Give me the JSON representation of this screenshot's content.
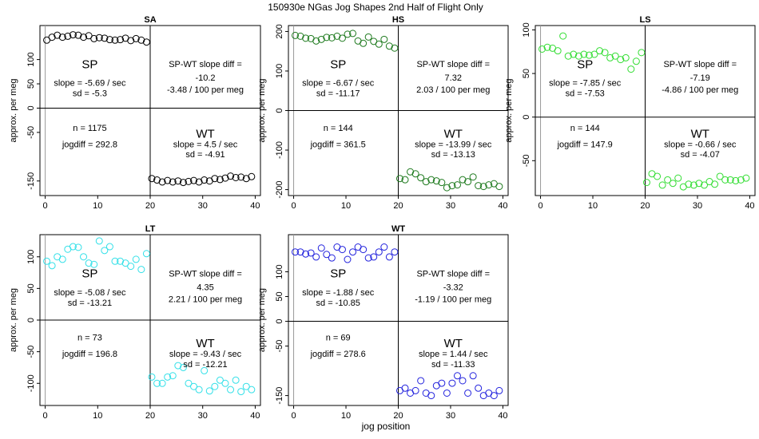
{
  "figure": {
    "title": "150930e    NGas Jog Shapes 2nd Half of Flight Only",
    "xlabel": "jog position"
  },
  "chart_data": [
    {
      "type": "scatter",
      "title": "SA",
      "ylabel": "approx. per meg",
      "color": "#000000",
      "xlim": [
        -1,
        41
      ],
      "ylim": [
        -180,
        170
      ],
      "xticks": [
        "0",
        "10",
        "20",
        "30",
        "40"
      ],
      "yticks": [
        "-150",
        "-50",
        "0",
        "50",
        "100"
      ],
      "yticks_values": [
        -150,
        -50,
        0,
        50,
        100
      ],
      "x": [
        0,
        1,
        2,
        3,
        4,
        5,
        6,
        7,
        8,
        9,
        10,
        11,
        12,
        13,
        14,
        15,
        16,
        17,
        18,
        19,
        20,
        21,
        22,
        23,
        24,
        25,
        26,
        27,
        28,
        29,
        30,
        31,
        32,
        33,
        34,
        35,
        36,
        37,
        38,
        39
      ],
      "y": [
        140,
        146,
        150,
        146,
        148,
        151,
        150,
        146,
        149,
        143,
        145,
        144,
        141,
        140,
        141,
        144,
        139,
        143,
        140,
        136,
        -145,
        -148,
        -152,
        -149,
        -152,
        -150,
        -153,
        -151,
        -149,
        -152,
        -148,
        -150,
        -145,
        -147,
        -144,
        -140,
        -143,
        -142,
        -145,
        -141
      ],
      "labels": {
        "sp": "SP",
        "wt": "WT",
        "sp_slope": "slope = -5.69 / sec",
        "sp_sd": "sd = -5.3",
        "diff_label": "SP-WT slope diff =",
        "diff_value": "-10.2",
        "diff_per_meg": "-3.48 / 100 per meg",
        "n": "n = 1175",
        "jogdiff": "jogdiff = 292.8",
        "wt_slope": "slope = 4.5 / sec",
        "wt_sd": "sd = -4.91"
      }
    },
    {
      "type": "scatter",
      "title": "HS",
      "ylabel": "approx. per meg",
      "color": "#1e7a1e",
      "xlim": [
        -1,
        41
      ],
      "ylim": [
        -215,
        215
      ],
      "xticks": [
        "0",
        "10",
        "20",
        "30",
        "40"
      ],
      "yticks": [
        "-200",
        "-100",
        "0",
        "100",
        "200"
      ],
      "yticks_values": [
        -200,
        -100,
        0,
        100,
        200
      ],
      "x": [
        0,
        1,
        2,
        3,
        4,
        5,
        6,
        7,
        8,
        9,
        10,
        11,
        12,
        13,
        14,
        15,
        16,
        17,
        18,
        19,
        20,
        21,
        22,
        23,
        24,
        25,
        26,
        27,
        28,
        29,
        30,
        31,
        32,
        33,
        34,
        35,
        36,
        37,
        38,
        39
      ],
      "y": [
        190,
        188,
        183,
        182,
        176,
        180,
        185,
        184,
        188,
        183,
        193,
        195,
        176,
        170,
        186,
        175,
        168,
        180,
        163,
        158,
        -172,
        -175,
        -155,
        -160,
        -170,
        -180,
        -175,
        -178,
        -182,
        -195,
        -190,
        -188,
        -175,
        -180,
        -168,
        -190,
        -192,
        -188,
        -185,
        -192
      ],
      "labels": {
        "sp": "SP",
        "wt": "WT",
        "sp_slope": "slope = -6.67 / sec",
        "sp_sd": "sd = -11.17",
        "diff_label": "SP-WT slope diff =",
        "diff_value": "7.32",
        "diff_per_meg": "2.03 / 100 per meg",
        "n": "n = 144",
        "jogdiff": "jogdiff = 361.5",
        "wt_slope": "slope = -13.99 / sec",
        "wt_sd": "sd = -13.13"
      }
    },
    {
      "type": "scatter",
      "title": "LS",
      "ylabel": "approx. per meg",
      "color": "#33dd33",
      "xlim": [
        -1,
        41
      ],
      "ylim": [
        -90,
        105
      ],
      "xticks": [
        "0",
        "10",
        "20",
        "30",
        "40"
      ],
      "yticks": [
        "-50",
        "0",
        "50",
        "100"
      ],
      "yticks_values": [
        -50,
        0,
        50,
        100
      ],
      "x": [
        0,
        1,
        2,
        3,
        4,
        5,
        6,
        7,
        8,
        9,
        10,
        11,
        12,
        13,
        14,
        15,
        16,
        17,
        18,
        19,
        20,
        21,
        22,
        23,
        24,
        25,
        26,
        27,
        28,
        29,
        30,
        31,
        32,
        33,
        34,
        35,
        36,
        37,
        38,
        39
      ],
      "y": [
        78,
        80,
        79,
        76,
        93,
        70,
        72,
        70,
        72,
        71,
        72,
        76,
        74,
        68,
        70,
        66,
        68,
        55,
        64,
        74,
        -75,
        -65,
        -68,
        -78,
        -72,
        -76,
        -70,
        -80,
        -77,
        -78,
        -76,
        -78,
        -74,
        -77,
        -68,
        -72,
        -72,
        -73,
        -72,
        -70
      ],
      "labels": {
        "sp": "SP",
        "wt": "WT",
        "sp_slope": "slope = -7.85 / sec",
        "sp_sd": "sd = -7.53",
        "diff_label": "SP-WT slope diff =",
        "diff_value": "-7.19",
        "diff_per_meg": "-4.86 / 100 per meg",
        "n": "n = 144",
        "jogdiff": "jogdiff = 147.9",
        "wt_slope": "slope = -0.66 / sec",
        "wt_sd": "sd = -4.07"
      }
    },
    {
      "type": "scatter",
      "title": "LT",
      "ylabel": "approx. per meg",
      "color": "#33e0e8",
      "xlim": [
        -1,
        41
      ],
      "ylim": [
        -135,
        135
      ],
      "xticks": [
        "0",
        "10",
        "20",
        "30",
        "40"
      ],
      "yticks": [
        "-100",
        "-50",
        "0",
        "50",
        "100"
      ],
      "yticks_values": [
        -100,
        -50,
        0,
        50,
        100
      ],
      "x": [
        0,
        1,
        2,
        3,
        4,
        5,
        6,
        7,
        8,
        9,
        10,
        11,
        12,
        13,
        14,
        15,
        16,
        17,
        18,
        19,
        20,
        21,
        22,
        23,
        24,
        25,
        26,
        27,
        28,
        29,
        30,
        31,
        32,
        33,
        34,
        35,
        36,
        37,
        38,
        39
      ],
      "y": [
        93,
        86,
        100,
        96,
        112,
        116,
        115,
        100,
        90,
        88,
        125,
        110,
        116,
        93,
        93,
        90,
        85,
        96,
        80,
        105,
        -90,
        -100,
        -100,
        -90,
        -88,
        -72,
        -75,
        -100,
        -105,
        -110,
        -80,
        -112,
        -105,
        -95,
        -100,
        -110,
        -95,
        -113,
        -105,
        -110
      ],
      "labels": {
        "sp": "SP",
        "wt": "WT",
        "sp_slope": "slope = -5.08 / sec",
        "sp_sd": "sd = -13.21",
        "diff_label": "SP-WT slope diff =",
        "diff_value": "4.35",
        "diff_per_meg": "2.21 / 100 per meg",
        "n": "n = 73",
        "jogdiff": "jogdiff = 196.8",
        "wt_slope": "slope = -9.43 / sec",
        "wt_sd": "sd = -12.21"
      }
    },
    {
      "type": "scatter",
      "title": "WT",
      "ylabel": "approx. per meg",
      "color": "#2222dd",
      "xlim": [
        -1,
        41
      ],
      "ylim": [
        -170,
        175
      ],
      "xticks": [
        "0",
        "10",
        "20",
        "30",
        "40"
      ],
      "yticks": [
        "-150",
        "-50",
        "0",
        "50",
        "100"
      ],
      "yticks_values": [
        -150,
        -50,
        0,
        50,
        100
      ],
      "x": [
        0,
        1,
        2,
        3,
        4,
        5,
        6,
        7,
        8,
        9,
        10,
        11,
        12,
        13,
        14,
        15,
        16,
        17,
        18,
        19,
        20,
        21,
        22,
        23,
        24,
        25,
        26,
        27,
        28,
        29,
        30,
        31,
        32,
        33,
        34,
        35,
        36,
        37,
        38,
        39
      ],
      "y": [
        140,
        140,
        136,
        138,
        130,
        148,
        135,
        128,
        150,
        145,
        125,
        140,
        150,
        145,
        128,
        130,
        140,
        150,
        130,
        140,
        -140,
        -135,
        -145,
        -140,
        -120,
        -145,
        -150,
        -130,
        -125,
        -145,
        -125,
        -110,
        -120,
        -145,
        -110,
        -135,
        -150,
        -145,
        -150,
        -140
      ],
      "labels": {
        "sp": "SP",
        "wt": "WT",
        "sp_slope": "slope = -1.88 / sec",
        "sp_sd": "sd = -10.85",
        "diff_label": "SP-WT slope diff =",
        "diff_value": "-3.32",
        "diff_per_meg": "-1.19 / 100 per meg",
        "n": "n = 69",
        "jogdiff": "jogdiff = 278.6",
        "wt_slope": "slope = 1.44 / sec",
        "wt_sd": "sd = -11.33"
      }
    }
  ]
}
